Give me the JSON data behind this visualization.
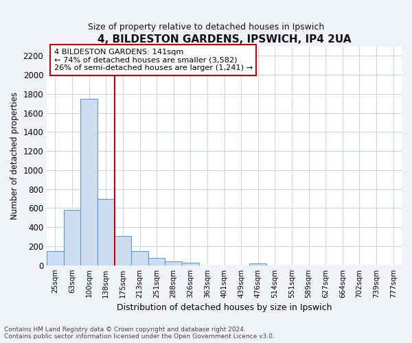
{
  "title": "4, BILDESTON GARDENS, IPSWICH, IP4 2UA",
  "subtitle": "Size of property relative to detached houses in Ipswich",
  "xlabel": "Distribution of detached houses by size in Ipswich",
  "ylabel": "Number of detached properties",
  "categories": [
    "25sqm",
    "63sqm",
    "100sqm",
    "138sqm",
    "175sqm",
    "213sqm",
    "251sqm",
    "288sqm",
    "326sqm",
    "363sqm",
    "401sqm",
    "439sqm",
    "476sqm",
    "514sqm",
    "551sqm",
    "589sqm",
    "627sqm",
    "664sqm",
    "702sqm",
    "739sqm",
    "777sqm"
  ],
  "values": [
    150,
    580,
    1750,
    700,
    310,
    150,
    80,
    40,
    25,
    0,
    0,
    0,
    18,
    0,
    0,
    0,
    0,
    0,
    0,
    0,
    0
  ],
  "highlight_index": 3,
  "bar_color": "#ccddf0",
  "bar_edge_color": "#5b9bd5",
  "highlight_line_color": "#cc0000",
  "annotation_text": "4 BILDESTON GARDENS: 141sqm\n← 74% of detached houses are smaller (3,582)\n26% of semi-detached houses are larger (1,241) →",
  "annotation_box_color": "#ffffff",
  "annotation_box_edge": "#cc0000",
  "footer_text": "Contains HM Land Registry data © Crown copyright and database right 2024.\nContains public sector information licensed under the Open Government Licence v3.0.",
  "ylim": [
    0,
    2300
  ],
  "yticks": [
    0,
    200,
    400,
    600,
    800,
    1000,
    1200,
    1400,
    1600,
    1800,
    2000,
    2200
  ],
  "fig_bg_color": "#f0f4f8",
  "plot_bg_color": "#ffffff",
  "grid_color": "#c8d4e0"
}
